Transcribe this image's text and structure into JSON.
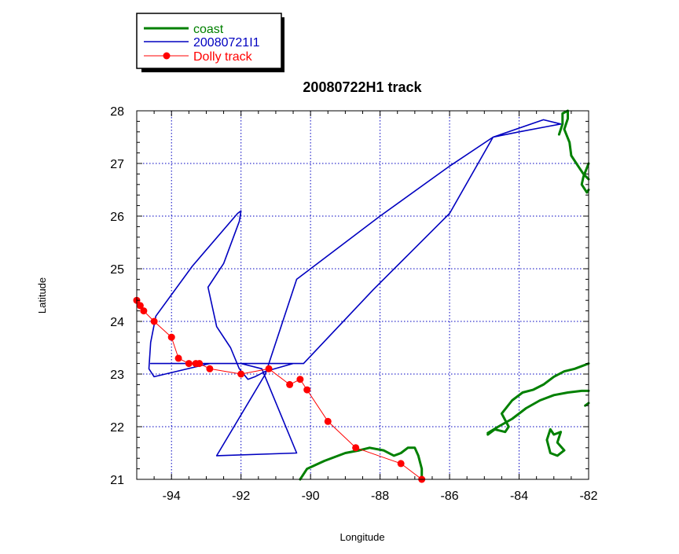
{
  "chart_data": {
    "type": "line",
    "title": "20080722H1 track",
    "xlabel": "Longitude",
    "ylabel": "Latitude",
    "xlim": [
      -95,
      -82
    ],
    "ylim": [
      21,
      28
    ],
    "xticks": [
      -94,
      -92,
      -90,
      -88,
      -86,
      -84,
      -82
    ],
    "yticks": [
      21,
      22,
      23,
      24,
      25,
      26,
      27,
      28
    ],
    "grid": true,
    "legend_position": "top-left, above plot",
    "series": [
      {
        "name": "coast",
        "color": "#008000",
        "style": "thick-line",
        "segments": [
          [
            [
              -90.3,
              21.0
            ],
            [
              -90.1,
              21.2
            ],
            [
              -89.6,
              21.35
            ],
            [
              -89.0,
              21.5
            ],
            [
              -88.6,
              21.55
            ],
            [
              -88.3,
              21.6
            ],
            [
              -87.9,
              21.55
            ],
            [
              -87.6,
              21.45
            ],
            [
              -87.4,
              21.5
            ],
            [
              -87.2,
              21.6
            ],
            [
              -87.0,
              21.6
            ],
            [
              -86.9,
              21.45
            ],
            [
              -86.8,
              21.2
            ],
            [
              -86.8,
              21.0
            ]
          ],
          [
            [
              -84.9,
              21.85
            ],
            [
              -84.7,
              21.95
            ],
            [
              -84.4,
              21.9
            ],
            [
              -84.3,
              22.0
            ],
            [
              -84.5,
              22.25
            ],
            [
              -84.2,
              22.5
            ],
            [
              -83.9,
              22.65
            ],
            [
              -83.6,
              22.7
            ],
            [
              -83.3,
              22.8
            ],
            [
              -83.0,
              22.95
            ],
            [
              -82.7,
              23.05
            ],
            [
              -82.4,
              23.1
            ],
            [
              -82.0,
              23.2
            ]
          ],
          [
            [
              -82.0,
              22.68
            ],
            [
              -82.2,
              22.68
            ],
            [
              -82.6,
              22.65
            ],
            [
              -83.0,
              22.6
            ],
            [
              -83.4,
              22.5
            ],
            [
              -83.8,
              22.35
            ],
            [
              -84.2,
              22.15
            ],
            [
              -84.6,
              22.0
            ],
            [
              -84.9,
              21.88
            ]
          ],
          [
            [
              -82.0,
              22.45
            ],
            [
              -82.1,
              22.4
            ]
          ],
          [
            [
              -83.1,
              21.95
            ],
            [
              -83.0,
              21.85
            ],
            [
              -82.8,
              21.9
            ],
            [
              -82.9,
              21.7
            ],
            [
              -82.7,
              21.55
            ],
            [
              -82.9,
              21.45
            ],
            [
              -83.1,
              21.5
            ],
            [
              -83.2,
              21.75
            ],
            [
              -83.1,
              21.95
            ]
          ],
          [
            [
              -82.85,
              27.55
            ],
            [
              -82.75,
              27.75
            ],
            [
              -82.75,
              27.95
            ],
            [
              -82.6,
              28.0
            ],
            [
              -82.6,
              27.85
            ],
            [
              -82.7,
              27.65
            ],
            [
              -82.55,
              27.4
            ],
            [
              -82.5,
              27.15
            ],
            [
              -82.3,
              26.95
            ],
            [
              -82.15,
              26.8
            ],
            [
              -82.0,
              26.7
            ]
          ],
          [
            [
              -82.0,
              27.0
            ],
            [
              -82.15,
              26.75
            ],
            [
              -82.2,
              26.6
            ],
            [
              -82.05,
              26.45
            ],
            [
              -82.0,
              26.5
            ]
          ]
        ]
      },
      {
        "name": "20080721I1",
        "color": "#0000c0",
        "style": "thin-line",
        "segments": [
          [
            [
              -94.6,
              23.2
            ],
            [
              -92.0,
              23.2
            ],
            [
              -90.2,
              23.2
            ],
            [
              -88.2,
              24.6
            ],
            [
              -86.0,
              26.05
            ],
            [
              -84.75,
              27.5
            ],
            [
              -84.0,
              27.6
            ],
            [
              -83.2,
              27.7
            ],
            [
              -82.8,
              27.75
            ],
            [
              -83.3,
              27.83
            ],
            [
              -84.75,
              27.5
            ],
            [
              -86.0,
              26.95
            ],
            [
              -88.0,
              26.0
            ],
            [
              -90.4,
              24.8
            ],
            [
              -91.3,
              23.0
            ],
            [
              -92.7,
              21.45
            ],
            [
              -90.4,
              21.5
            ],
            [
              -91.4,
              23.1
            ],
            [
              -92.0,
              23.2
            ],
            [
              -92.9,
              23.2
            ],
            [
              -94.5,
              22.95
            ],
            [
              -94.65,
              23.1
            ],
            [
              -94.6,
              23.6
            ],
            [
              -94.45,
              24.1
            ],
            [
              -93.4,
              25.05
            ],
            [
              -92.1,
              26.05
            ],
            [
              -92.0,
              26.1
            ],
            [
              -92.05,
              25.9
            ],
            [
              -92.5,
              25.1
            ],
            [
              -92.95,
              24.65
            ],
            [
              -92.7,
              23.9
            ],
            [
              -92.3,
              23.5
            ],
            [
              -92.05,
              23.1
            ],
            [
              -91.8,
              22.9
            ],
            [
              -91.6,
              22.95
            ],
            [
              -91.3,
              23.05
            ],
            [
              -90.5,
              23.2
            ]
          ]
        ]
      },
      {
        "name": "Dolly track",
        "color": "#ff0000",
        "style": "line-with-markers",
        "points": [
          [
            -95.0,
            24.4
          ],
          [
            -94.9,
            24.3
          ],
          [
            -94.8,
            24.2
          ],
          [
            -94.5,
            24.0
          ],
          [
            -94.0,
            23.7
          ],
          [
            -93.8,
            23.3
          ],
          [
            -93.5,
            23.2
          ],
          [
            -93.3,
            23.2
          ],
          [
            -93.2,
            23.2
          ],
          [
            -92.9,
            23.1
          ],
          [
            -92.0,
            23.0
          ],
          [
            -91.2,
            23.1
          ],
          [
            -90.6,
            22.8
          ],
          [
            -90.3,
            22.9
          ],
          [
            -90.1,
            22.7
          ],
          [
            -89.5,
            22.1
          ],
          [
            -88.7,
            21.6
          ],
          [
            -87.4,
            21.3
          ],
          [
            -86.8,
            21.0
          ]
        ]
      }
    ]
  }
}
